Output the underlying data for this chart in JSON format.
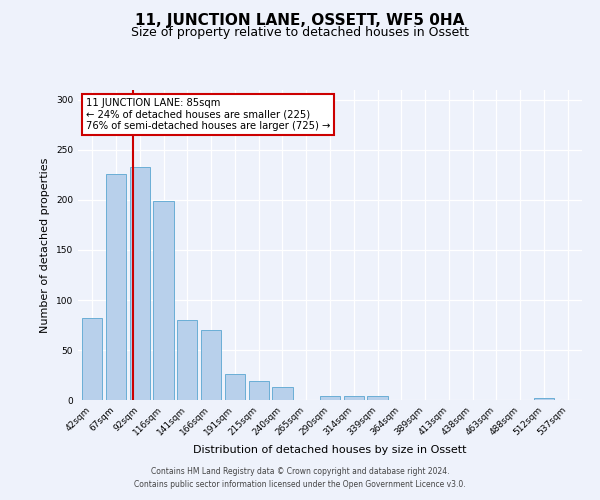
{
  "title": "11, JUNCTION LANE, OSSETT, WF5 0HA",
  "subtitle": "Size of property relative to detached houses in Ossett",
  "xlabel": "Distribution of detached houses by size in Ossett",
  "ylabel": "Number of detached properties",
  "categories": [
    "42sqm",
    "67sqm",
    "92sqm",
    "116sqm",
    "141sqm",
    "166sqm",
    "191sqm",
    "215sqm",
    "240sqm",
    "265sqm",
    "290sqm",
    "314sqm",
    "339sqm",
    "364sqm",
    "389sqm",
    "413sqm",
    "438sqm",
    "463sqm",
    "488sqm",
    "512sqm",
    "537sqm"
  ],
  "values": [
    82,
    226,
    233,
    199,
    80,
    70,
    26,
    19,
    13,
    0,
    4,
    4,
    4,
    0,
    0,
    0,
    0,
    0,
    0,
    2,
    0
  ],
  "bar_color": "#b8d0eb",
  "bar_edge_color": "#6aaed6",
  "marker_label": "11 JUNCTION LANE: 85sqm",
  "annotation_line1": "← 24% of detached houses are smaller (225)",
  "annotation_line2": "76% of semi-detached houses are larger (725) →",
  "annotation_box_color": "#ffffff",
  "annotation_box_edge": "#cc0000",
  "marker_line_color": "#cc0000",
  "ylim": [
    0,
    310
  ],
  "yticks": [
    0,
    50,
    100,
    150,
    200,
    250,
    300
  ],
  "footer_line1": "Contains HM Land Registry data © Crown copyright and database right 2024.",
  "footer_line2": "Contains public sector information licensed under the Open Government Licence v3.0.",
  "background_color": "#eef2fb",
  "plot_background_color": "#eef2fb",
  "title_fontsize": 11,
  "subtitle_fontsize": 9
}
